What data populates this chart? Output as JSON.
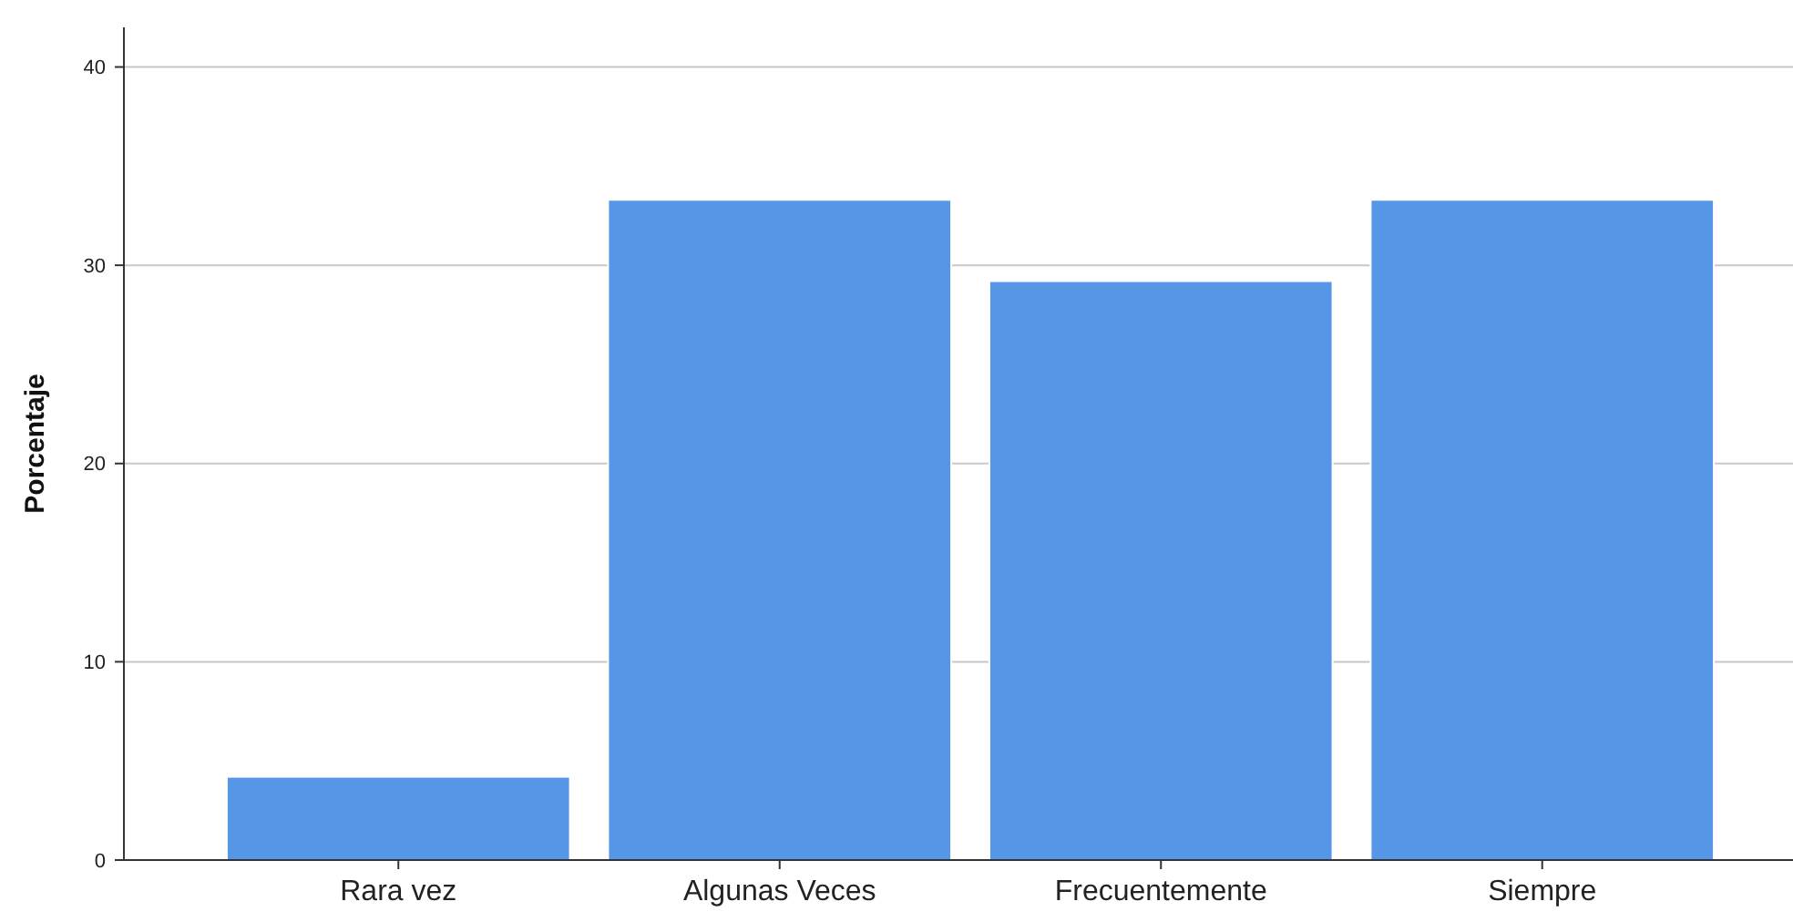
{
  "chart_data": {
    "type": "bar",
    "ylabel": "Porcentaje",
    "categories": [
      "Rara vez",
      "Algunas Veces",
      "Frecuentemente",
      "Siempre"
    ],
    "values": [
      4.2,
      33.3,
      29.2,
      33.3
    ],
    "color": "#5596e6",
    "ylim": [
      0,
      42
    ],
    "yticks": [
      0,
      10,
      20,
      30,
      40
    ],
    "grid": "y"
  }
}
